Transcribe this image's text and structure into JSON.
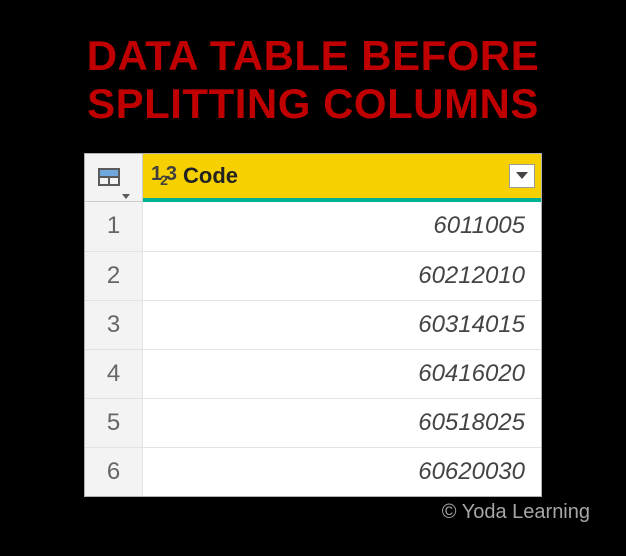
{
  "title_line1": "DATA TABLE BEFORE",
  "title_line2": "SPLITTING COLUMNS",
  "title_color": "#c00000",
  "background_color": "#000000",
  "table": {
    "column_header_bg": "#f6d000",
    "header_underline_color": "#00b294",
    "row_header_bg": "#f3f3f3",
    "grid_color": "#e2e2e2",
    "type_icon_label": "123",
    "column_label": "Code",
    "rows": [
      {
        "n": "1",
        "value": "6011005"
      },
      {
        "n": "2",
        "value": "60212010"
      },
      {
        "n": "3",
        "value": "60314015"
      },
      {
        "n": "4",
        "value": "60416020"
      },
      {
        "n": "5",
        "value": "60518025"
      },
      {
        "n": "6",
        "value": "60620030"
      }
    ]
  },
  "credit": "© Yoda Learning"
}
